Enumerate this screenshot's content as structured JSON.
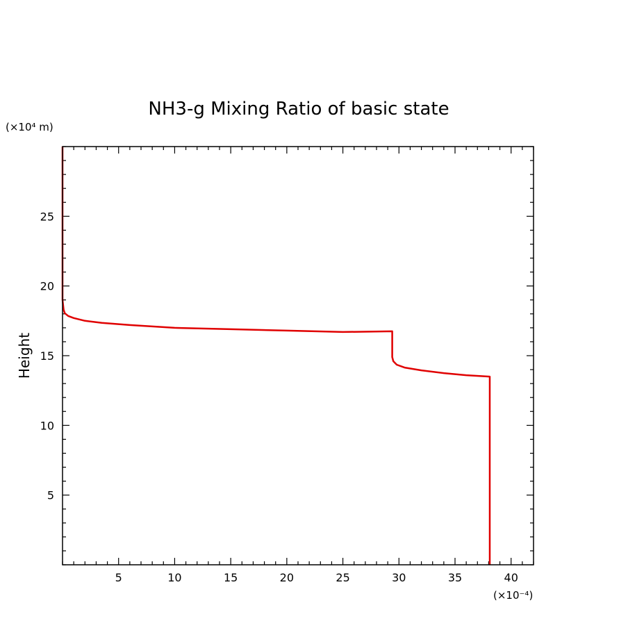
{
  "chart_data": {
    "type": "line",
    "title": "NH3-g Mixing Ratio of basic state",
    "xlabel": "",
    "ylabel": "Height",
    "x_unit_label": "(×10⁻⁴)",
    "y_unit_label": "(×10⁴ m)",
    "xlim": [
      0,
      42
    ],
    "ylim": [
      0,
      30
    ],
    "x_ticks": [
      5,
      10,
      15,
      20,
      25,
      30,
      35,
      40
    ],
    "y_ticks": [
      5,
      10,
      15,
      20,
      25
    ],
    "x_minor_step": 1,
    "y_minor_step": 1,
    "grid": false,
    "line_color": "#e00000",
    "series": [
      {
        "x": [
          38.1,
          38.1,
          36.0,
          34.0,
          32.0,
          30.5,
          29.8,
          29.5,
          29.4,
          29.4,
          29.4,
          25.0,
          20.0,
          15.0,
          10.0,
          6.0,
          3.5,
          2.0,
          1.0,
          0.5,
          0.2,
          0.1,
          0.0,
          0.0
        ],
        "y": [
          0.0,
          13.5,
          13.6,
          13.75,
          13.95,
          14.15,
          14.35,
          14.6,
          14.9,
          15.5,
          16.75,
          16.7,
          16.8,
          16.9,
          17.0,
          17.2,
          17.35,
          17.5,
          17.7,
          17.85,
          18.05,
          18.3,
          19.0,
          30.0
        ]
      }
    ]
  }
}
